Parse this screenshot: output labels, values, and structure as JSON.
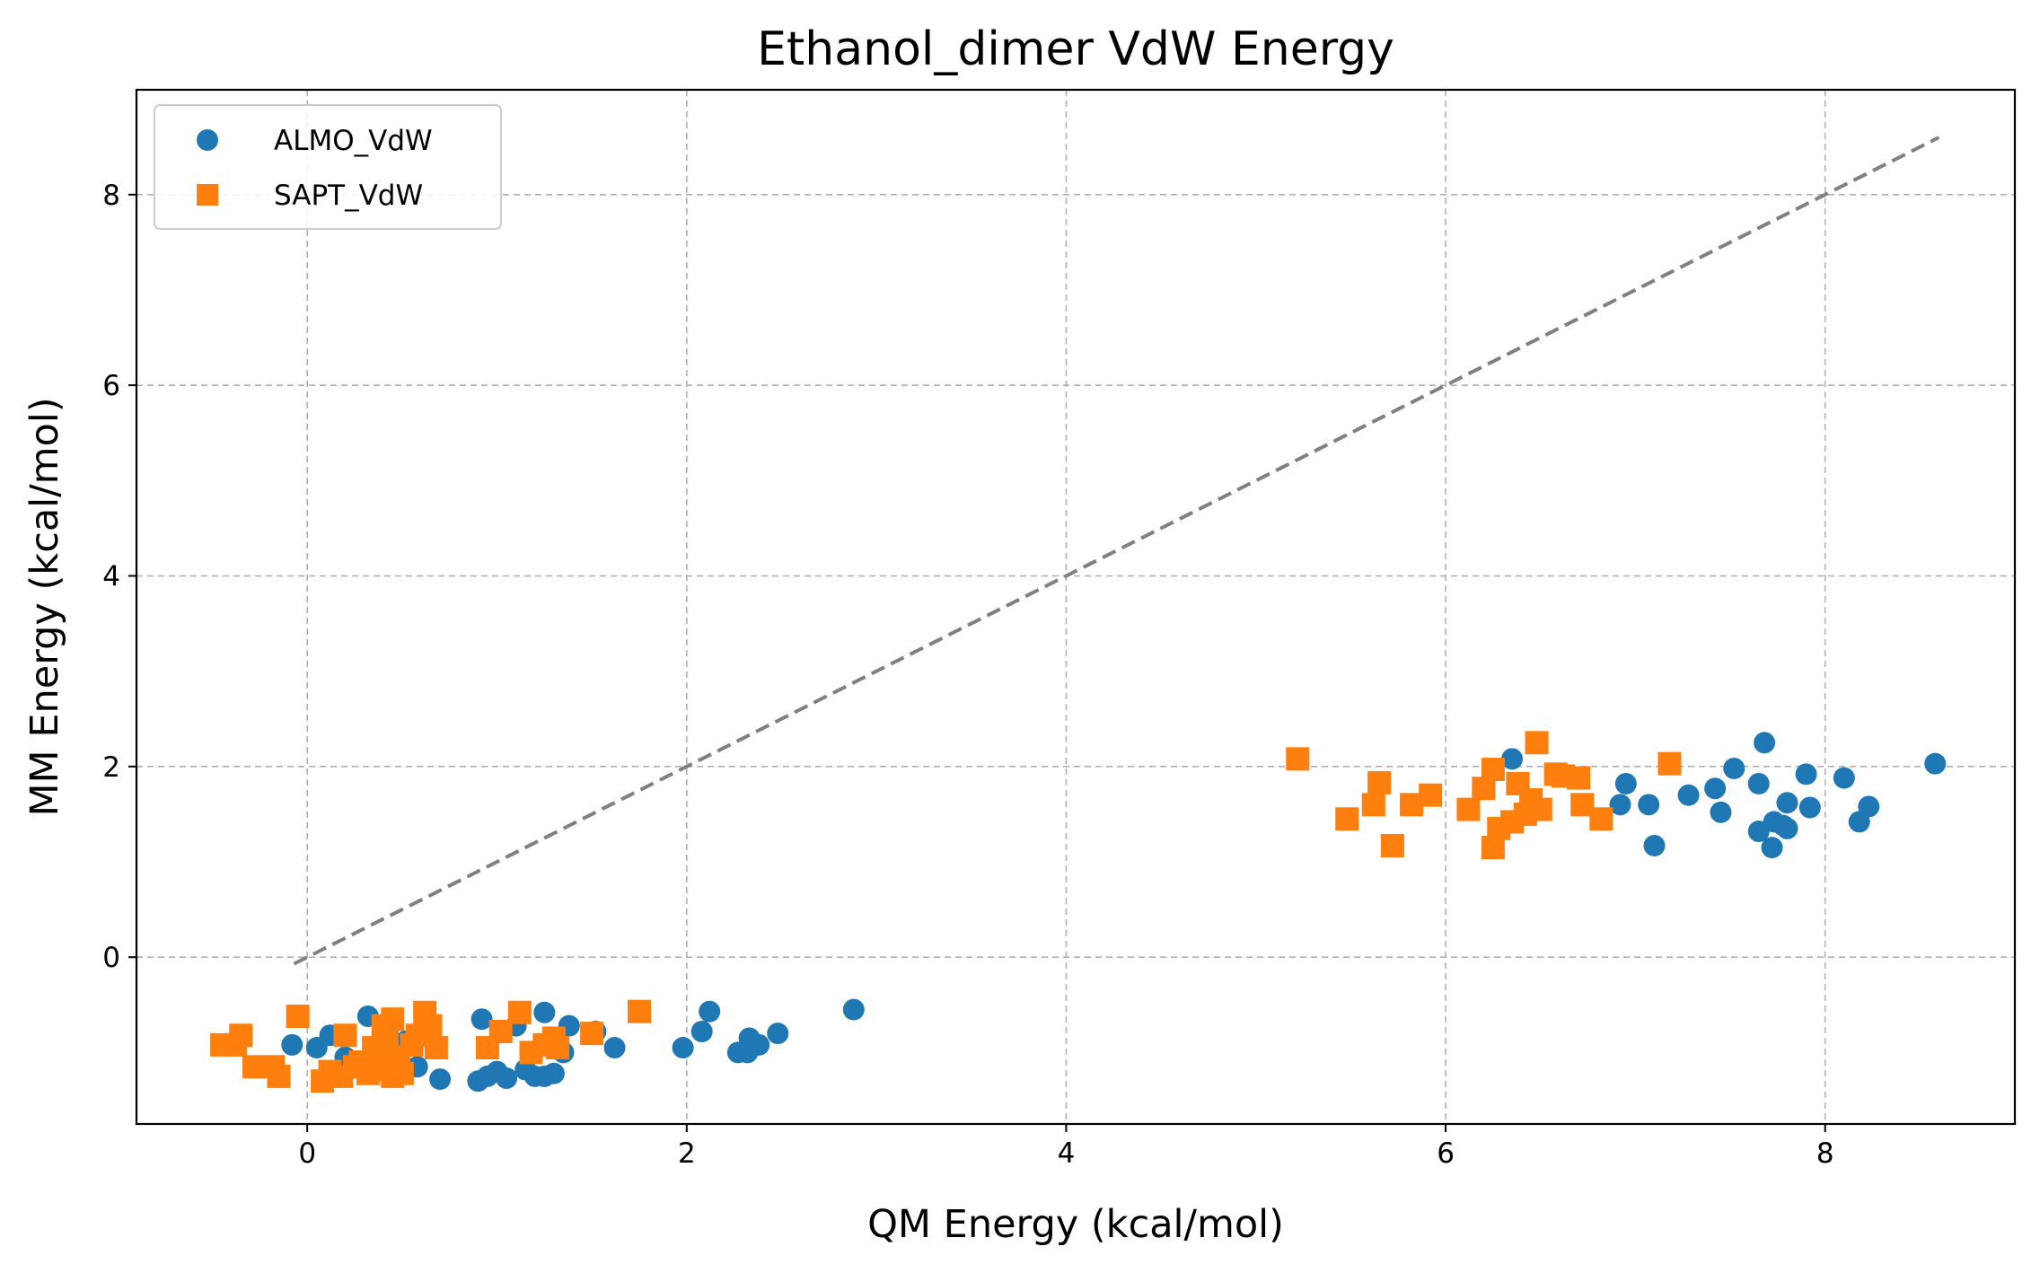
{
  "chart_data": {
    "type": "scatter",
    "title": "Ethanol_dimer VdW Energy",
    "xlabel": "QM Energy (kcal/mol)",
    "ylabel": "MM Energy (kcal/mol)",
    "xlim": [
      -0.9,
      9.0
    ],
    "ylim": [
      -1.75,
      9.1
    ],
    "xticks": [
      0,
      2,
      4,
      6,
      8
    ],
    "yticks": [
      0,
      2,
      4,
      6,
      8
    ],
    "xtick_labels": [
      "0",
      "2",
      "4",
      "6",
      "8"
    ],
    "ytick_labels": [
      "0",
      "2",
      "4",
      "6",
      "8"
    ],
    "grid": true,
    "legend_position": "top-left",
    "reference_line": {
      "style": "dashed",
      "color": "#808080",
      "x": [
        -0.07,
        8.6
      ],
      "y": [
        -0.07,
        8.6
      ]
    },
    "series": [
      {
        "name": "ALMO_VdW",
        "marker": "circle",
        "color": "#1f77b4",
        "points": [
          [
            -0.08,
            -0.92
          ],
          [
            0.05,
            -0.95
          ],
          [
            0.12,
            -0.82
          ],
          [
            0.2,
            -1.05
          ],
          [
            0.32,
            -0.62
          ],
          [
            0.38,
            -0.95
          ],
          [
            0.45,
            -1.1
          ],
          [
            0.52,
            -0.88
          ],
          [
            0.58,
            -1.15
          ],
          [
            0.62,
            -0.78
          ],
          [
            0.7,
            -1.28
          ],
          [
            0.9,
            -1.3
          ],
          [
            0.92,
            -0.65
          ],
          [
            0.95,
            -1.25
          ],
          [
            1.0,
            -1.2
          ],
          [
            1.05,
            -1.27
          ],
          [
            1.1,
            -0.72
          ],
          [
            1.15,
            -1.18
          ],
          [
            1.2,
            -1.25
          ],
          [
            1.25,
            -1.25
          ],
          [
            1.25,
            -0.58
          ],
          [
            1.3,
            -1.22
          ],
          [
            1.35,
            -1.0
          ],
          [
            1.38,
            -0.72
          ],
          [
            1.52,
            -0.78
          ],
          [
            1.62,
            -0.95
          ],
          [
            1.98,
            -0.95
          ],
          [
            2.08,
            -0.78
          ],
          [
            2.12,
            -0.57
          ],
          [
            2.27,
            -1.0
          ],
          [
            2.32,
            -1.0
          ],
          [
            2.33,
            -0.85
          ],
          [
            2.38,
            -0.92
          ],
          [
            2.48,
            -0.8
          ],
          [
            2.88,
            -0.55
          ],
          [
            6.35,
            2.08
          ],
          [
            6.92,
            1.6
          ],
          [
            6.95,
            1.82
          ],
          [
            7.07,
            1.6
          ],
          [
            7.1,
            1.17
          ],
          [
            7.28,
            1.7
          ],
          [
            7.42,
            1.77
          ],
          [
            7.45,
            1.52
          ],
          [
            7.52,
            1.98
          ],
          [
            7.65,
            1.82
          ],
          [
            7.65,
            1.32
          ],
          [
            7.68,
            2.25
          ],
          [
            7.72,
            1.15
          ],
          [
            7.73,
            1.42
          ],
          [
            7.78,
            1.38
          ],
          [
            7.8,
            1.62
          ],
          [
            7.8,
            1.35
          ],
          [
            7.9,
            1.92
          ],
          [
            7.92,
            1.57
          ],
          [
            8.1,
            1.88
          ],
          [
            8.18,
            1.42
          ],
          [
            8.23,
            1.58
          ],
          [
            8.58,
            2.03
          ]
        ]
      },
      {
        "name": "SAPT_VdW",
        "marker": "square",
        "color": "#ff7f0e",
        "points": [
          [
            -0.45,
            -0.92
          ],
          [
            -0.38,
            -0.92
          ],
          [
            -0.35,
            -0.82
          ],
          [
            -0.28,
            -1.15
          ],
          [
            -0.18,
            -1.15
          ],
          [
            -0.15,
            -1.25
          ],
          [
            -0.05,
            -0.62
          ],
          [
            0.08,
            -1.3
          ],
          [
            0.12,
            -1.2
          ],
          [
            0.18,
            -1.25
          ],
          [
            0.2,
            -0.82
          ],
          [
            0.25,
            -1.15
          ],
          [
            0.28,
            -1.1
          ],
          [
            0.32,
            -1.22
          ],
          [
            0.35,
            -0.95
          ],
          [
            0.38,
            -1.0
          ],
          [
            0.4,
            -0.72
          ],
          [
            0.42,
            -0.85
          ],
          [
            0.42,
            -1.18
          ],
          [
            0.45,
            -1.25
          ],
          [
            0.45,
            -0.65
          ],
          [
            0.48,
            -1.05
          ],
          [
            0.5,
            -1.22
          ],
          [
            0.55,
            -0.92
          ],
          [
            0.58,
            -0.82
          ],
          [
            0.62,
            -0.58
          ],
          [
            0.65,
            -0.72
          ],
          [
            0.68,
            -0.95
          ],
          [
            0.95,
            -0.95
          ],
          [
            1.02,
            -0.78
          ],
          [
            1.12,
            -0.58
          ],
          [
            1.18,
            -1.0
          ],
          [
            1.25,
            -0.92
          ],
          [
            1.3,
            -0.85
          ],
          [
            1.32,
            -0.95
          ],
          [
            1.5,
            -0.8
          ],
          [
            1.75,
            -0.57
          ],
          [
            5.22,
            2.08
          ],
          [
            5.48,
            1.45
          ],
          [
            5.62,
            1.6
          ],
          [
            5.65,
            1.83
          ],
          [
            5.72,
            1.17
          ],
          [
            5.82,
            1.6
          ],
          [
            5.92,
            1.7
          ],
          [
            6.12,
            1.55
          ],
          [
            6.2,
            1.77
          ],
          [
            6.25,
            1.97
          ],
          [
            6.25,
            1.15
          ],
          [
            6.28,
            1.35
          ],
          [
            6.35,
            1.42
          ],
          [
            6.38,
            1.82
          ],
          [
            6.42,
            1.5
          ],
          [
            6.45,
            1.65
          ],
          [
            6.48,
            2.25
          ],
          [
            6.5,
            1.55
          ],
          [
            6.58,
            1.92
          ],
          [
            6.62,
            1.9
          ],
          [
            6.7,
            1.88
          ],
          [
            6.72,
            1.6
          ],
          [
            6.82,
            1.45
          ],
          [
            7.18,
            2.03
          ]
        ]
      }
    ]
  }
}
